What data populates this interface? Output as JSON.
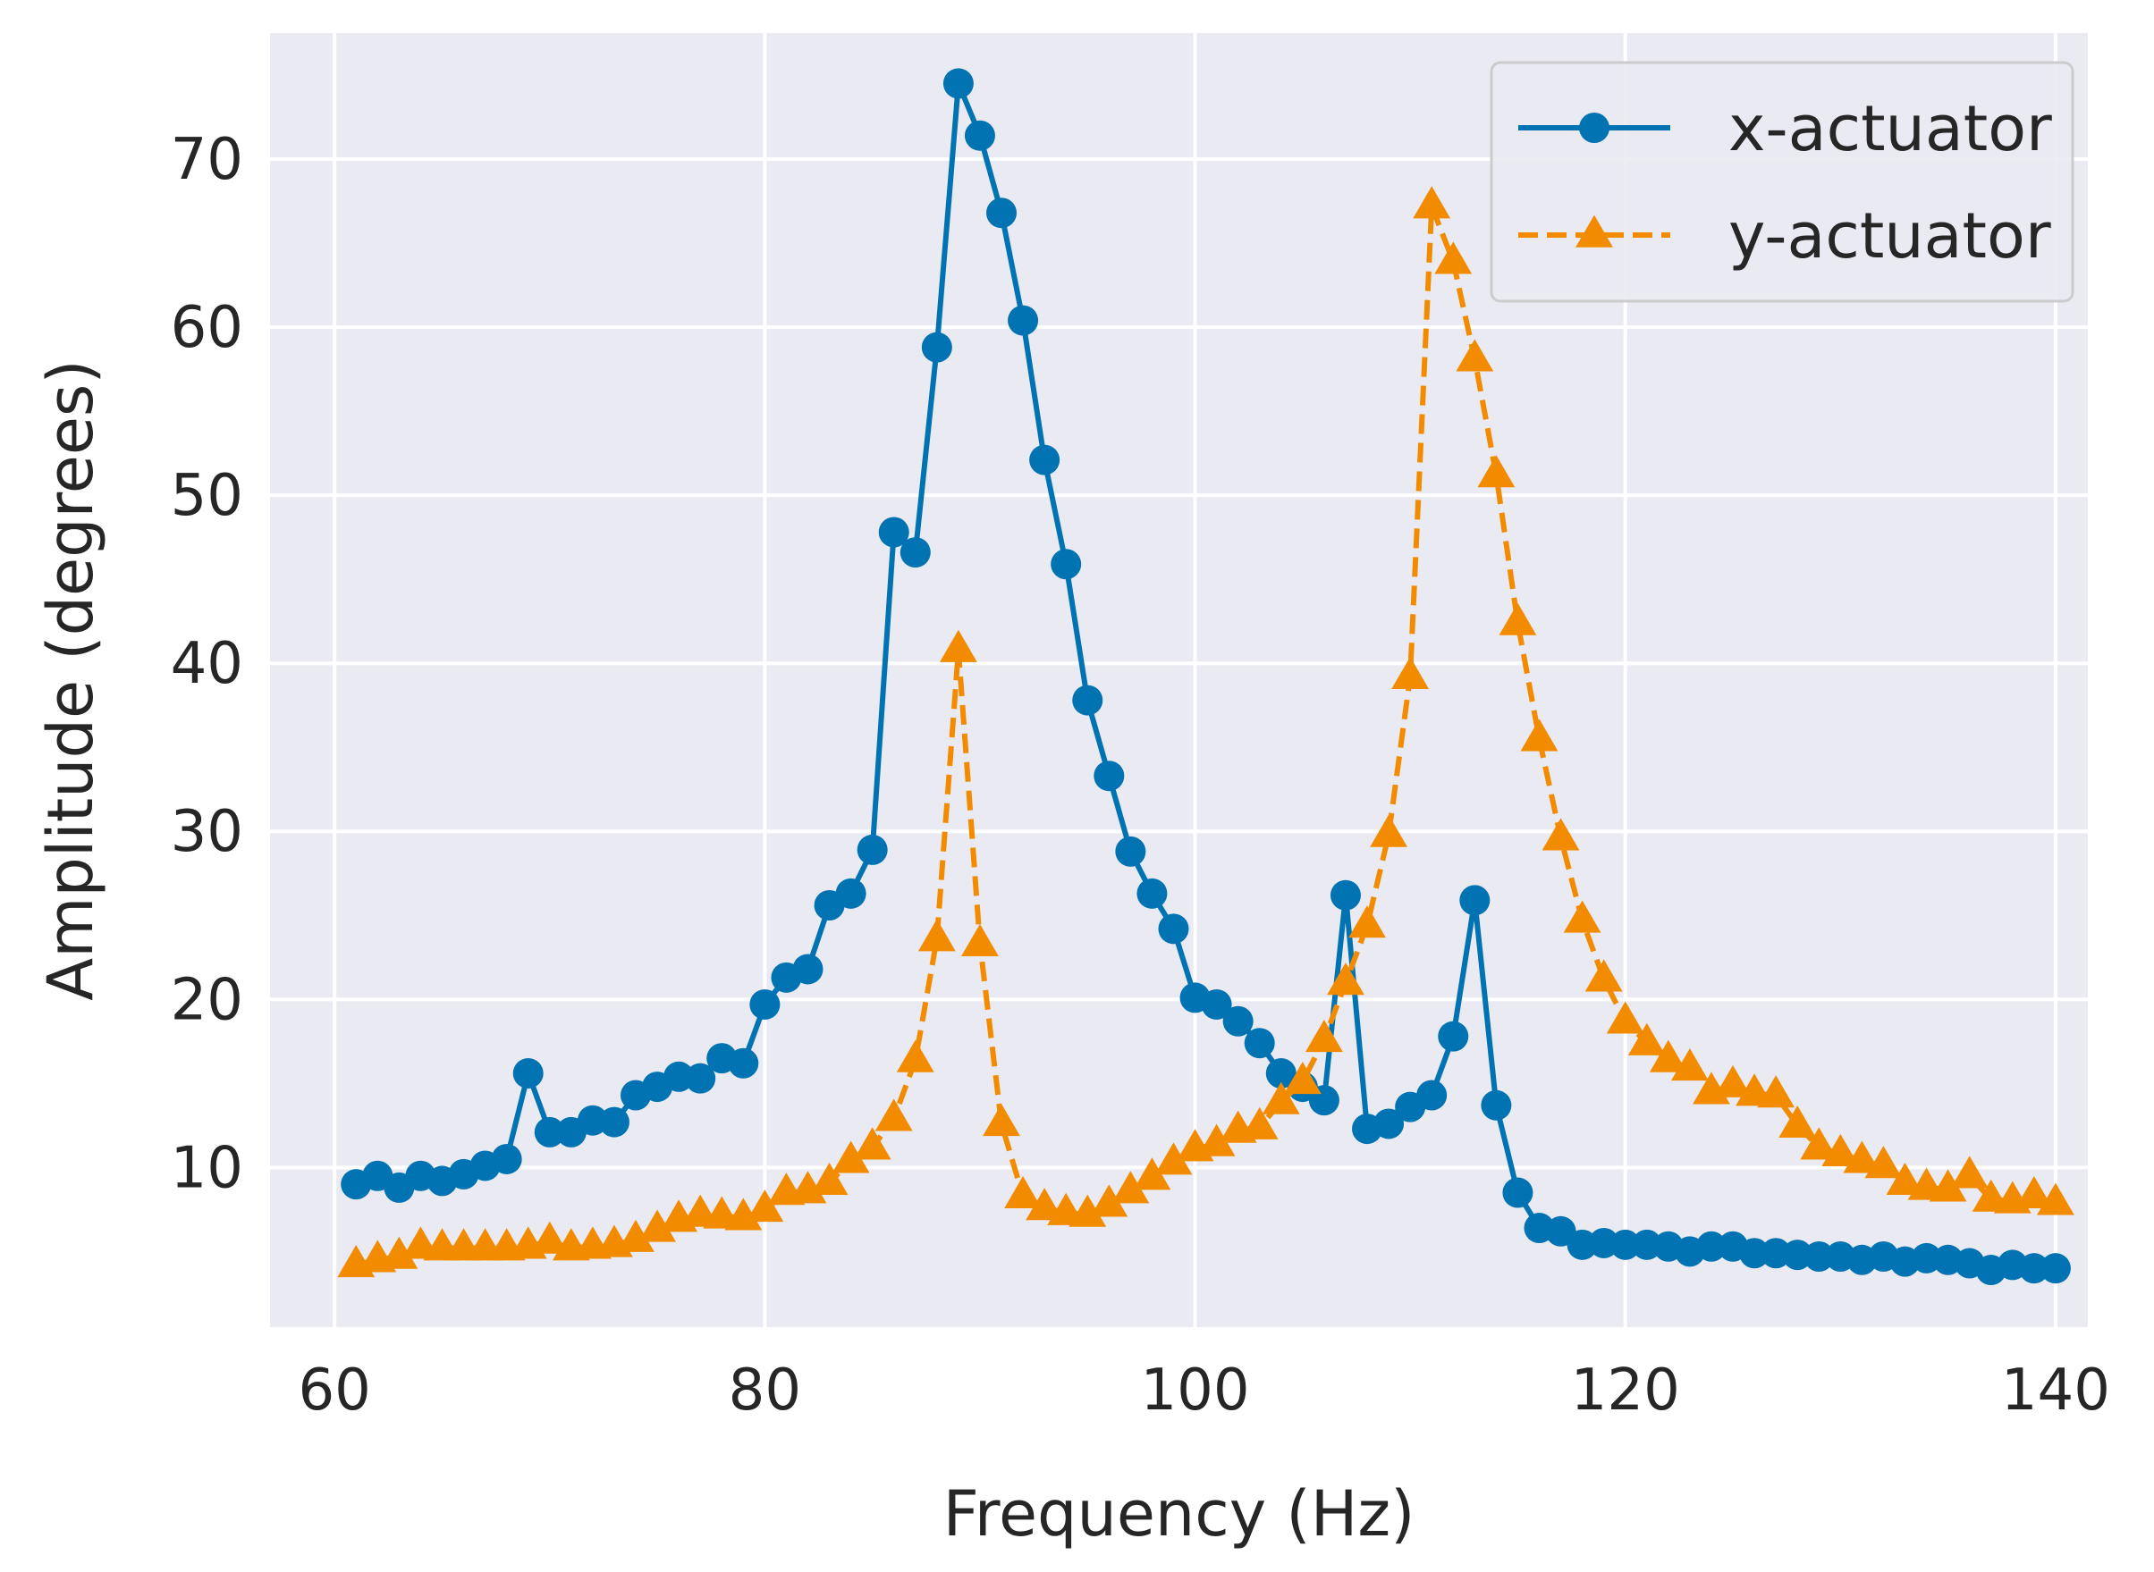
{
  "chart_data": {
    "type": "line",
    "title": "",
    "xlabel": "Frequency (Hz)",
    "ylabel": "Amplitude (degrees)",
    "xlim": [
      57,
      141.5
    ],
    "ylim": [
      0.5,
      77.5
    ],
    "xticks": [
      60,
      80,
      100,
      120,
      140
    ],
    "yticks": [
      10,
      20,
      30,
      40,
      50,
      60,
      70
    ],
    "grid": true,
    "legend_position": "top-right",
    "colors": {
      "background": "#eaeaf2",
      "grid": "#ffffff",
      "x_series": "#0173b2",
      "y_series": "#f38b00"
    },
    "series": [
      {
        "name": "x-actuator",
        "style": "solid",
        "marker": "circle",
        "x": [
          61,
          62,
          63,
          64,
          65,
          66,
          67,
          68,
          69,
          70,
          71,
          72,
          73,
          74,
          75,
          76,
          77,
          78,
          79,
          80,
          81,
          82,
          83,
          84,
          85,
          86,
          87,
          88,
          89,
          90,
          91,
          92,
          93,
          94,
          95,
          96,
          97,
          98,
          99,
          100,
          101,
          102,
          103,
          104,
          105,
          106,
          107,
          108,
          109,
          110,
          111,
          112,
          113,
          114,
          115,
          116,
          117,
          118,
          119,
          120,
          121,
          122,
          123,
          124,
          125,
          126,
          127,
          128,
          129,
          130,
          131,
          132,
          133,
          134,
          135,
          136,
          137,
          138,
          139,
          140
        ],
        "values": [
          9.0,
          9.5,
          8.8,
          9.5,
          9.2,
          9.6,
          10.1,
          10.5,
          15.6,
          12.1,
          12.1,
          12.8,
          12.7,
          14.3,
          14.8,
          15.4,
          15.3,
          16.5,
          16.2,
          19.7,
          21.3,
          21.8,
          25.6,
          26.3,
          28.9,
          47.8,
          46.6,
          58.8,
          74.5,
          71.4,
          66.8,
          60.4,
          52.1,
          45.9,
          37.8,
          33.3,
          28.8,
          26.3,
          24.2,
          20.1,
          19.7,
          18.7,
          17.4,
          15.6,
          14.8,
          14.0,
          26.2,
          12.3,
          12.6,
          13.6,
          14.3,
          17.8,
          25.9,
          13.7,
          8.5,
          6.4,
          6.2,
          5.4,
          5.5,
          5.4,
          5.4,
          5.3,
          5.0,
          5.3,
          5.3,
          4.9,
          4.9,
          4.8,
          4.7,
          4.7,
          4.5,
          4.7,
          4.4,
          4.6,
          4.5,
          4.3,
          3.9,
          4.2,
          4.0,
          4.0
        ]
      },
      {
        "name": "y-actuator",
        "style": "dashed",
        "marker": "triangle",
        "x": [
          61,
          62,
          63,
          64,
          65,
          66,
          67,
          68,
          69,
          70,
          71,
          72,
          73,
          74,
          75,
          76,
          77,
          78,
          79,
          80,
          81,
          82,
          83,
          84,
          85,
          86,
          87,
          88,
          89,
          90,
          91,
          92,
          93,
          94,
          95,
          96,
          97,
          98,
          99,
          100,
          101,
          102,
          103,
          104,
          105,
          106,
          107,
          108,
          109,
          110,
          111,
          112,
          113,
          114,
          115,
          116,
          117,
          118,
          119,
          120,
          121,
          122,
          123,
          124,
          125,
          126,
          127,
          128,
          129,
          130,
          131,
          132,
          133,
          134,
          135,
          136,
          137,
          138,
          139,
          140
        ],
        "values": [
          4.2,
          4.5,
          4.7,
          5.3,
          5.2,
          5.2,
          5.2,
          5.2,
          5.3,
          5.6,
          5.2,
          5.3,
          5.4,
          5.7,
          6.3,
          6.9,
          7.2,
          7.1,
          7.0,
          7.5,
          8.5,
          8.6,
          9.1,
          10.4,
          11.2,
          12.9,
          16.4,
          23.6,
          40.8,
          23.3,
          12.6,
          8.3,
          7.6,
          7.3,
          7.2,
          7.8,
          8.6,
          9.4,
          10.3,
          11.1,
          11.4,
          12.2,
          12.4,
          13.9,
          15.1,
          17.6,
          21.0,
          24.4,
          29.8,
          39.2,
          67.2,
          63.9,
          58.1,
          51.2,
          42.4,
          35.5,
          29.6,
          24.7,
          21.2,
          18.7,
          17.4,
          16.4,
          15.9,
          14.5,
          14.9,
          14.4,
          14.3,
          12.5,
          11.2,
          10.8,
          10.4,
          10.1,
          9.1,
          8.8,
          8.7,
          9.5,
          8.1,
          8.0,
          8.3,
          7.9
        ]
      }
    ]
  }
}
